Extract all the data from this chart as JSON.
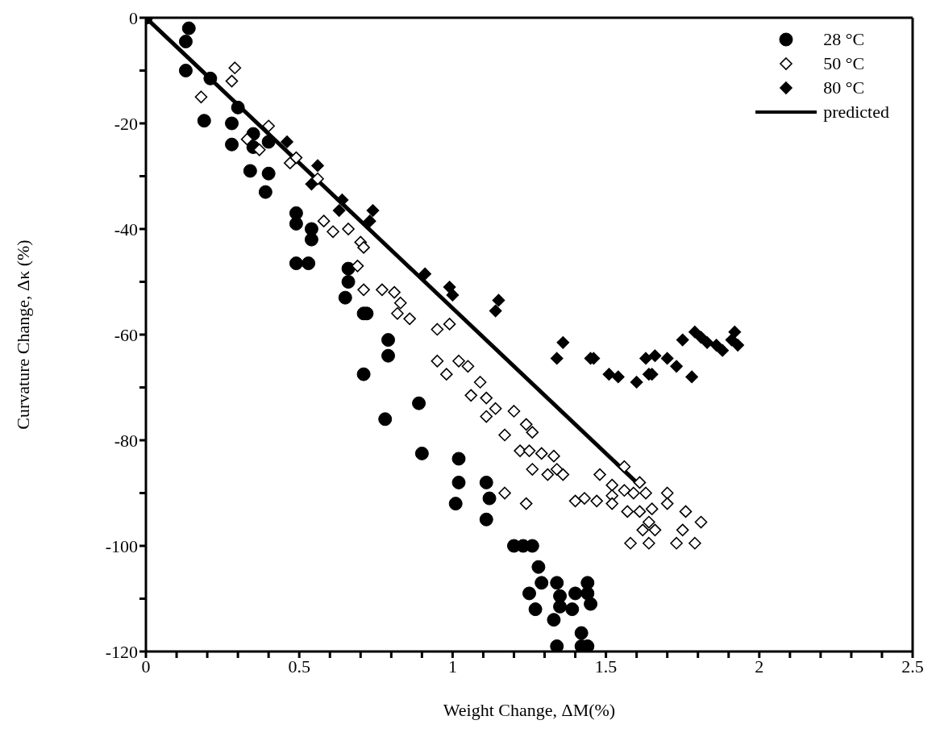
{
  "chart_data": {
    "type": "scatter",
    "xlabel": "Weight Change,  ΔM(%)",
    "ylabel": "Curvature Change, Δκ  (%)",
    "xlim": [
      0,
      2.5
    ],
    "xticks": [
      0,
      {
        "value": 0.1,
        "label": null
      },
      {
        "value": 0.2,
        "label": null
      },
      {
        "value": 0.3,
        "label": null
      },
      {
        "value": 0.4,
        "label": null
      },
      0.5,
      {
        "value": 0.6,
        "label": null
      },
      {
        "value": 0.7,
        "label": null
      },
      {
        "value": 0.8,
        "label": null
      },
      {
        "value": 0.9,
        "label": null
      },
      1,
      {
        "value": 1.1,
        "label": null
      },
      {
        "value": 1.2,
        "label": null
      },
      {
        "value": 1.3,
        "label": null
      },
      {
        "value": 1.4,
        "label": null
      },
      1.5,
      {
        "value": 1.6,
        "label": null
      },
      {
        "value": 1.7,
        "label": null
      },
      {
        "value": 1.8,
        "label": null
      },
      {
        "value": 1.9,
        "label": null
      },
      2,
      {
        "value": 2.1,
        "label": null
      },
      {
        "value": 2.2,
        "label": null
      },
      {
        "value": 2.3,
        "label": null
      },
      {
        "value": 2.4,
        "label": null
      },
      2.5
    ],
    "ylim": [
      -120,
      0
    ],
    "yticks": [
      -120,
      {
        "value": -110,
        "label": null
      },
      -100,
      {
        "value": -90,
        "label": null
      },
      -80,
      {
        "value": -70,
        "label": null
      },
      -60,
      {
        "value": -50,
        "label": null
      },
      -40,
      {
        "value": -30,
        "label": null
      },
      -20,
      {
        "value": -10,
        "label": null
      },
      0
    ],
    "legend": "top right",
    "grid": false,
    "series": [
      {
        "name": "28 °C",
        "marker": "circle",
        "color": "#000000",
        "x": [
          0,
          0.14,
          0.13,
          0.13,
          0.21,
          0.3,
          0.19,
          0.28,
          0.35,
          0.28,
          0.35,
          0.4,
          0.34,
          0.4,
          0.39,
          0.49,
          0.49,
          0.54,
          0.54,
          0.49,
          0.53,
          0.66,
          0.66,
          0.65,
          0.71,
          0.72,
          0.79,
          0.79,
          0.71,
          0.78,
          0.89,
          0.9,
          1.02,
          1.02,
          1.01,
          1.11,
          1.12,
          1.11,
          1.2,
          1.23,
          1.26,
          1.28,
          1.29,
          1.25,
          1.27,
          1.34,
          1.35,
          1.35,
          1.39,
          1.4,
          1.44,
          1.44,
          1.45,
          1.33,
          1.42,
          1.34,
          1.42,
          1.44
        ],
        "values": [
          0,
          -2,
          -4.5,
          -10,
          -11.5,
          -17,
          -19.5,
          -20,
          -22,
          -24,
          -24.5,
          -23.5,
          -29,
          -29.5,
          -33,
          -37,
          -39,
          -40,
          -42,
          -46.5,
          -46.5,
          -47.5,
          -50,
          -53,
          -56,
          -56,
          -61,
          -64,
          -67.5,
          -76,
          -73,
          -82.5,
          -83.5,
          -88,
          -92,
          -88,
          -91,
          -95,
          -100,
          -100,
          -100,
          -104,
          -107,
          -109,
          -112,
          -107,
          -109.5,
          -111.5,
          -112,
          -109,
          -109,
          -107,
          -111,
          -114,
          -116.5,
          -119,
          -119,
          -119
        ]
      },
      {
        "name": "50 °C",
        "marker": "diamond",
        "color": "#ffffff",
        "x": [
          0.29,
          0.28,
          0.18,
          0.4,
          0.33,
          0.37,
          0.47,
          0.49,
          0.56,
          0.58,
          0.61,
          0.66,
          0.7,
          0.71,
          0.69,
          0.71,
          0.77,
          0.81,
          0.82,
          0.83,
          0.86,
          0.95,
          0.99,
          0.95,
          1.02,
          0.98,
          1.05,
          1.09,
          1.06,
          1.11,
          1.14,
          1.11,
          1.2,
          1.24,
          1.26,
          1.17,
          1.22,
          1.25,
          1.29,
          1.33,
          1.26,
          1.31,
          1.34,
          1.36,
          1.17,
          1.24,
          1.56,
          1.48,
          1.52,
          1.61,
          1.56,
          1.4,
          1.43,
          1.47,
          1.52,
          1.52,
          1.59,
          1.63,
          1.57,
          1.61,
          1.64,
          1.62,
          1.58,
          1.64,
          1.7,
          1.7,
          1.76,
          1.81,
          1.75,
          1.79,
          1.73,
          1.66,
          1.65
        ],
        "values": [
          -9.5,
          -12,
          -15,
          -20.5,
          -23,
          -25,
          -27.5,
          -26.5,
          -30.5,
          -38.5,
          -40.5,
          -40,
          -42.5,
          -43.5,
          -47,
          -51.5,
          -51.5,
          -52,
          -56,
          -54,
          -57,
          -59,
          -58,
          -65,
          -65,
          -67.5,
          -66,
          -69,
          -71.5,
          -72,
          -74,
          -75.5,
          -74.5,
          -77,
          -78.5,
          -79,
          -82,
          -82,
          -82.5,
          -83,
          -85.5,
          -86.5,
          -85.5,
          -86.5,
          -90,
          -92,
          -85,
          -86.5,
          -88.5,
          -88,
          -89.5,
          -91.5,
          -91,
          -91.5,
          -90.5,
          -92,
          -90,
          -90,
          -93.5,
          -93.5,
          -95.5,
          -97,
          -99.5,
          -99.5,
          -90,
          -92,
          -93.5,
          -95.5,
          -97,
          -99.5,
          -99.5,
          -97,
          -93
        ]
      },
      {
        "name": "80 °C",
        "marker": "diamond",
        "color": "#000000",
        "x": [
          0.46,
          0.56,
          0.54,
          0.64,
          0.63,
          0.74,
          0.73,
          0.91,
          0.99,
          1,
          1.15,
          1.14,
          1.36,
          1.34,
          1.45,
          1.46,
          1.51,
          1.54,
          1.6,
          1.63,
          1.64,
          1.66,
          1.7,
          1.73,
          1.65,
          1.75,
          1.79,
          1.81,
          1.83,
          1.86,
          1.88,
          1.91,
          1.92,
          1.93,
          1.78
        ],
        "values": [
          -23.5,
          -28,
          -31.5,
          -34.5,
          -36.5,
          -36.5,
          -38.5,
          -48.5,
          -51,
          -52.5,
          -53.5,
          -55.5,
          -61.5,
          -64.5,
          -64.5,
          -64.5,
          -67.5,
          -68,
          -69,
          -64.5,
          -67.5,
          -64,
          -64.5,
          -66,
          -67.5,
          -61,
          -59.5,
          -60.5,
          -61.5,
          -62,
          -63,
          -61,
          -59.5,
          -62,
          -68
        ]
      },
      {
        "name": "predicted",
        "type": "line",
        "marker": "none",
        "line_style": "solid",
        "color": "#000000",
        "x": [
          0,
          1.6
        ],
        "values": [
          0,
          -88
        ]
      }
    ]
  }
}
